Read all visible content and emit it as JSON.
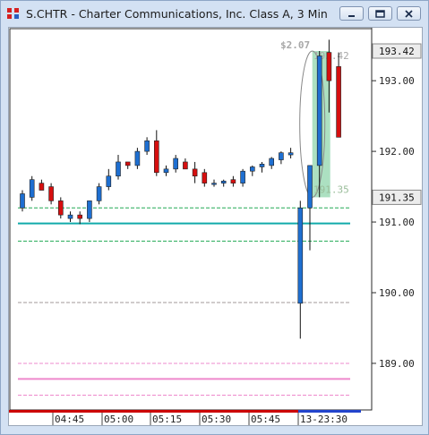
{
  "window": {
    "title": "S.CHTR - Charter Communications, Inc. Class A, 3 Min",
    "buttons": [
      "minimize",
      "restore",
      "close"
    ]
  },
  "chart_data": {
    "type": "candlestick",
    "title": "S.CHTR - Charter Communications, Inc. Class A, 3 Min",
    "ylim": [
      188.45,
      193.7
    ],
    "y_ticks": [
      {
        "value": 193.0,
        "label": "193.00"
      },
      {
        "value": 192.0,
        "label": "192.00"
      },
      {
        "value": 191.0,
        "label": "191.00"
      },
      {
        "value": 190.0,
        "label": "190.00"
      },
      {
        "value": 189.0,
        "label": "189.00"
      }
    ],
    "x_ticks": [
      "04:45",
      "05:00",
      "05:15",
      "05:30",
      "05:45",
      "13-23:30"
    ],
    "candles": [
      {
        "o": 191.2,
        "h": 191.45,
        "l": 191.15,
        "c": 191.4
      },
      {
        "o": 191.35,
        "h": 191.65,
        "l": 191.3,
        "c": 191.6
      },
      {
        "o": 191.55,
        "h": 191.6,
        "l": 191.45,
        "c": 191.45
      },
      {
        "o": 191.5,
        "h": 191.55,
        "l": 191.25,
        "c": 191.3
      },
      {
        "o": 191.3,
        "h": 191.35,
        "l": 191.05,
        "c": 191.1
      },
      {
        "o": 191.05,
        "h": 191.15,
        "l": 191.0,
        "c": 191.1
      },
      {
        "o": 191.1,
        "h": 191.15,
        "l": 190.97,
        "c": 191.05
      },
      {
        "o": 191.05,
        "h": 191.3,
        "l": 191.0,
        "c": 191.3
      },
      {
        "o": 191.3,
        "h": 191.55,
        "l": 191.25,
        "c": 191.5
      },
      {
        "o": 191.5,
        "h": 191.75,
        "l": 191.45,
        "c": 191.65
      },
      {
        "o": 191.65,
        "h": 191.95,
        "l": 191.6,
        "c": 191.85
      },
      {
        "o": 191.85,
        "h": 191.85,
        "l": 191.75,
        "c": 191.8
      },
      {
        "o": 191.8,
        "h": 192.05,
        "l": 191.75,
        "c": 192.0
      },
      {
        "o": 192.0,
        "h": 192.2,
        "l": 191.95,
        "c": 192.15
      },
      {
        "o": 192.15,
        "h": 192.3,
        "l": 191.65,
        "c": 191.7
      },
      {
        "o": 191.7,
        "h": 191.8,
        "l": 191.65,
        "c": 191.75
      },
      {
        "o": 191.75,
        "h": 191.95,
        "l": 191.7,
        "c": 191.9
      },
      {
        "o": 191.85,
        "h": 191.9,
        "l": 191.75,
        "c": 191.75
      },
      {
        "o": 191.75,
        "h": 191.85,
        "l": 191.55,
        "c": 191.65
      },
      {
        "o": 191.7,
        "h": 191.75,
        "l": 191.5,
        "c": 191.55
      },
      {
        "o": 191.55,
        "h": 191.6,
        "l": 191.5,
        "c": 191.55
      },
      {
        "o": 191.55,
        "h": 191.6,
        "l": 191.5,
        "c": 191.58
      },
      {
        "o": 191.6,
        "h": 191.65,
        "l": 191.5,
        "c": 191.55
      },
      {
        "o": 191.55,
        "h": 191.75,
        "l": 191.5,
        "c": 191.72
      },
      {
        "o": 191.72,
        "h": 191.8,
        "l": 191.65,
        "c": 191.78
      },
      {
        "o": 191.78,
        "h": 191.85,
        "l": 191.7,
        "c": 191.82
      },
      {
        "o": 191.8,
        "h": 191.92,
        "l": 191.75,
        "c": 191.9
      },
      {
        "o": 191.88,
        "h": 192.0,
        "l": 191.82,
        "c": 191.98
      },
      {
        "o": 191.95,
        "h": 192.05,
        "l": 191.9,
        "c": 191.98
      },
      {
        "o": 189.85,
        "h": 191.3,
        "l": 189.35,
        "c": 191.2
      },
      {
        "o": 191.2,
        "h": 191.8,
        "l": 190.6,
        "c": 191.8
      },
      {
        "o": 191.8,
        "h": 193.42,
        "l": 191.35,
        "c": 193.35
      },
      {
        "o": 193.4,
        "h": 193.58,
        "l": 192.55,
        "c": 193.0
      },
      {
        "o": 193.2,
        "h": 193.4,
        "l": 192.2,
        "c": 192.2
      }
    ],
    "bar_colors": {
      "up": "#1e6fd1",
      "down": "#d60f0f"
    },
    "horizontal_lines": [
      {
        "value": 191.2,
        "color": "#22aa55",
        "style": "dashed"
      },
      {
        "value": 190.98,
        "color": "#11aaaa",
        "style": "solid"
      },
      {
        "value": 190.73,
        "color": "#22aa55",
        "style": "dashed"
      },
      {
        "value": 189.86,
        "color": "#a09a9a",
        "style": "dashed"
      },
      {
        "value": 189.0,
        "color": "#ee88cc",
        "style": "dashed"
      },
      {
        "value": 188.78,
        "color": "#ee88cc",
        "style": "solid"
      },
      {
        "value": 188.55,
        "color": "#ee88cc",
        "style": "dashed"
      }
    ],
    "price_labels": [
      {
        "value": 193.42,
        "label": "193.42"
      },
      {
        "value": 191.35,
        "label": "191.35"
      }
    ],
    "measurement": {
      "change": "$2.07",
      "high": 193.42,
      "low": 191.35,
      "high_label": "193.42",
      "low_label": "191.35"
    },
    "bottom_bar_colors": [
      "#cc0000",
      "#2244cc"
    ]
  }
}
